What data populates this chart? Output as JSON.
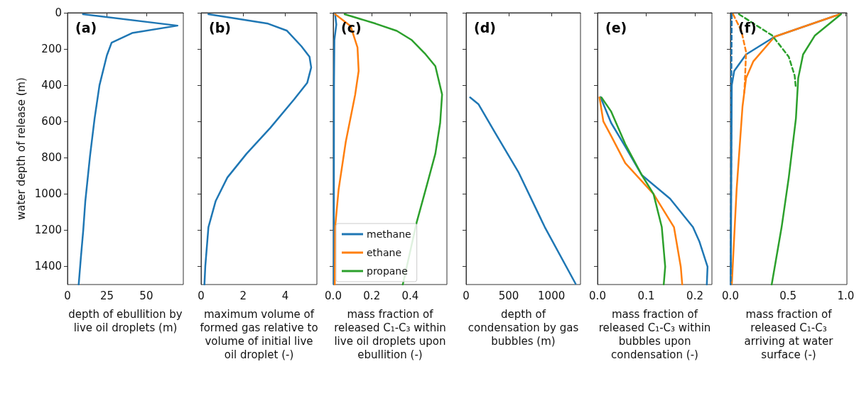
{
  "chart_data": [
    {
      "type": "line",
      "title": "(a)",
      "xlabel": "depth of ebullition by live oil droplets (m)",
      "ylabel": "water depth of release (m)",
      "xlim": [
        0,
        73.5
      ],
      "xticks": [
        0,
        25,
        50
      ],
      "ylim": [
        1500,
        0
      ],
      "yticks": [
        0,
        200,
        400,
        600,
        800,
        1000,
        1200,
        1400
      ],
      "series": [
        {
          "color": "#1f77b4",
          "x": [
            9.8,
            69.8,
            41,
            28,
            25,
            20.3,
            17.2,
            14.3,
            11.3,
            10,
            8.5,
            7.1
          ],
          "values": [
            8,
            71,
            112,
            165,
            235,
            400,
            583,
            790,
            1040,
            1200,
            1350,
            1500
          ]
        }
      ]
    },
    {
      "type": "line",
      "title": "(b)",
      "xlabel": "maximum volume of formed gas relative to volume of initial live oil droplet (-)",
      "xlim": [
        0,
        5.5
      ],
      "xticks": [
        0,
        2,
        4
      ],
      "ylim": [
        1500,
        0
      ],
      "yticks": [
        0,
        200,
        400,
        600,
        800,
        1000,
        1200,
        1400
      ],
      "tick_labels": "x",
      "series": [
        {
          "color": "#1f77b4",
          "x": [
            0.35,
            3.18,
            4.08,
            4.76,
            5.15,
            5.23,
            5.04,
            4.42,
            3.29,
            2.16,
            1.25,
            0.69,
            0.35,
            0.2,
            0.16
          ],
          "values": [
            8,
            60,
            99,
            184,
            243,
            302,
            387,
            478,
            635,
            778,
            909,
            1040,
            1183,
            1400,
            1500
          ]
        }
      ]
    },
    {
      "type": "line",
      "title": "(c)",
      "xlabel": "mass fraction of released C₁-C₃ within live oil droplets upon ebullition (-)",
      "xlim": [
        0,
        0.59
      ],
      "xticks": [
        {
          "value": 0,
          "label": "0.0"
        },
        {
          "value": 0.2,
          "label": "0.2"
        },
        {
          "value": 0.4,
          "label": "0.4"
        }
      ],
      "ylim": [
        1500,
        0
      ],
      "yticks": [
        0,
        200,
        400,
        600,
        800,
        1000,
        1200,
        1400
      ],
      "tick_labels": "x",
      "legend": "bottom",
      "series": [
        {
          "name": "methane",
          "color": "#1f77b4",
          "x": [
            0.01,
            0.016,
            0.006,
            0.004,
            0.003
          ],
          "values": [
            8,
            65,
            150,
            400,
            1500
          ]
        },
        {
          "name": "ethane",
          "color": "#ff7f0e",
          "x": [
            0.01,
            0.09,
            0.126,
            0.132,
            0.114,
            0.065,
            0.028,
            0.01,
            0.008
          ],
          "values": [
            8,
            73,
            191,
            321,
            451,
            713,
            975,
            1183,
            1500
          ]
        },
        {
          "name": "propane",
          "color": "#2ca02c",
          "x": [
            0.059,
            0.22,
            0.33,
            0.408,
            0.48,
            0.53,
            0.565,
            0.555,
            0.53,
            0.48,
            0.433,
            0.361
          ],
          "values": [
            8,
            60,
            100,
            151,
            230,
            295,
            451,
            608,
            778,
            975,
            1157,
            1500
          ]
        }
      ]
    },
    {
      "type": "line",
      "title": "(d)",
      "xlabel": "depth of condensation by gas bubbles (m)",
      "xlim": [
        0,
        1340
      ],
      "xticks": [
        0,
        500,
        1000
      ],
      "ylim": [
        1500,
        0
      ],
      "yticks": [
        0,
        200,
        400,
        600,
        800,
        1000,
        1200,
        1400
      ],
      "tick_labels": "x",
      "series": [
        {
          "color": "#1f77b4",
          "x": [
            47,
            144,
            339,
            617,
            922,
            1283
          ],
          "values": [
            467,
            504,
            661,
            883,
            1183,
            1496
          ]
        }
      ]
    },
    {
      "type": "line",
      "title": "(e)",
      "xlabel": "mass fraction of released C₁-C₃ within bubbles upon condensation (-)",
      "xlim": [
        0,
        0.235
      ],
      "xticks": [
        {
          "value": 0,
          "label": "0.0"
        },
        {
          "value": 0.1,
          "label": "0.1"
        },
        {
          "value": 0.2,
          "label": "0.2"
        }
      ],
      "ylim": [
        1500,
        0
      ],
      "yticks": [
        0,
        200,
        400,
        600,
        800,
        1000,
        1200,
        1400
      ],
      "tick_labels": "x",
      "series": [
        {
          "color": "#1f77b4",
          "x": [
            0.006,
            0.028,
            0.057,
            0.091,
            0.149,
            0.196,
            0.209,
            0.226,
            0.2245
          ],
          "values": [
            465,
            608,
            739,
            896,
            1026,
            1183,
            1261,
            1402,
            1500
          ]
        },
        {
          "color": "#ff7f0e",
          "x": [
            0.004,
            0.012,
            0.028,
            0.057,
            0.115,
            0.157,
            0.171,
            0.174
          ],
          "values": [
            467,
            600,
            680,
            830,
            1000,
            1183,
            1402,
            1500
          ]
        },
        {
          "color": "#2ca02c",
          "x": [
            0.008,
            0.028,
            0.057,
            0.091,
            0.115,
            0.132,
            0.139,
            0.136
          ],
          "values": [
            467,
            545,
            725,
            896,
            1000,
            1183,
            1402,
            1500
          ]
        }
      ]
    },
    {
      "type": "line",
      "title": "(f)",
      "xlabel": "mass fraction of released C₁-C₃ arriving at water surface (-)",
      "xlim": [
        0,
        1.01
      ],
      "xticks": [
        {
          "value": 0,
          "label": "0.0"
        },
        {
          "value": 0.5,
          "label": "0.5"
        },
        {
          "value": 1,
          "label": "1.0"
        }
      ],
      "ylim": [
        1500,
        0
      ],
      "yticks": [
        0,
        200,
        400,
        600,
        800,
        1000,
        1200,
        1400
      ],
      "tick_labels": "x",
      "series": [
        {
          "color": "#1f77b4",
          "x": [
            0.949,
            0.383,
            0.136,
            0.033,
            0.012,
            0.003
          ],
          "values": [
            8,
            132,
            230,
            321,
            400,
            1500
          ]
        },
        {
          "color": "#ff7f0e",
          "x": [
            0.949,
            0.383,
            0.198,
            0.136,
            0.105,
            0.054,
            0.012
          ],
          "values": [
            8,
            132,
            269,
            360,
            517,
            975,
            1500
          ]
        },
        {
          "color": "#2ca02c",
          "x": [
            0.959,
            0.733,
            0.63,
            0.588,
            0.568,
            0.506,
            0.444,
            0.358
          ],
          "values": [
            8,
            125,
            230,
            360,
            583,
            909,
            1183,
            1500
          ]
        },
        {
          "color": "#1f77b4",
          "line_style": "dashed",
          "x": [
            0.012,
            0.008,
            0.003
          ],
          "values": [
            8,
            400,
            1500
          ]
        },
        {
          "color": "#ff7f0e",
          "line_style": "dashed",
          "x": [
            0.023,
            0.095,
            0.136,
            0.125,
            0.12
          ],
          "values": [
            8,
            99,
            217,
            387,
            440
          ]
        },
        {
          "color": "#2ca02c",
          "line_style": "dashed",
          "x": [
            0.074,
            0.362,
            0.506,
            0.557,
            0.568
          ],
          "values": [
            8,
            125,
            243,
            347,
            419
          ]
        }
      ]
    }
  ]
}
